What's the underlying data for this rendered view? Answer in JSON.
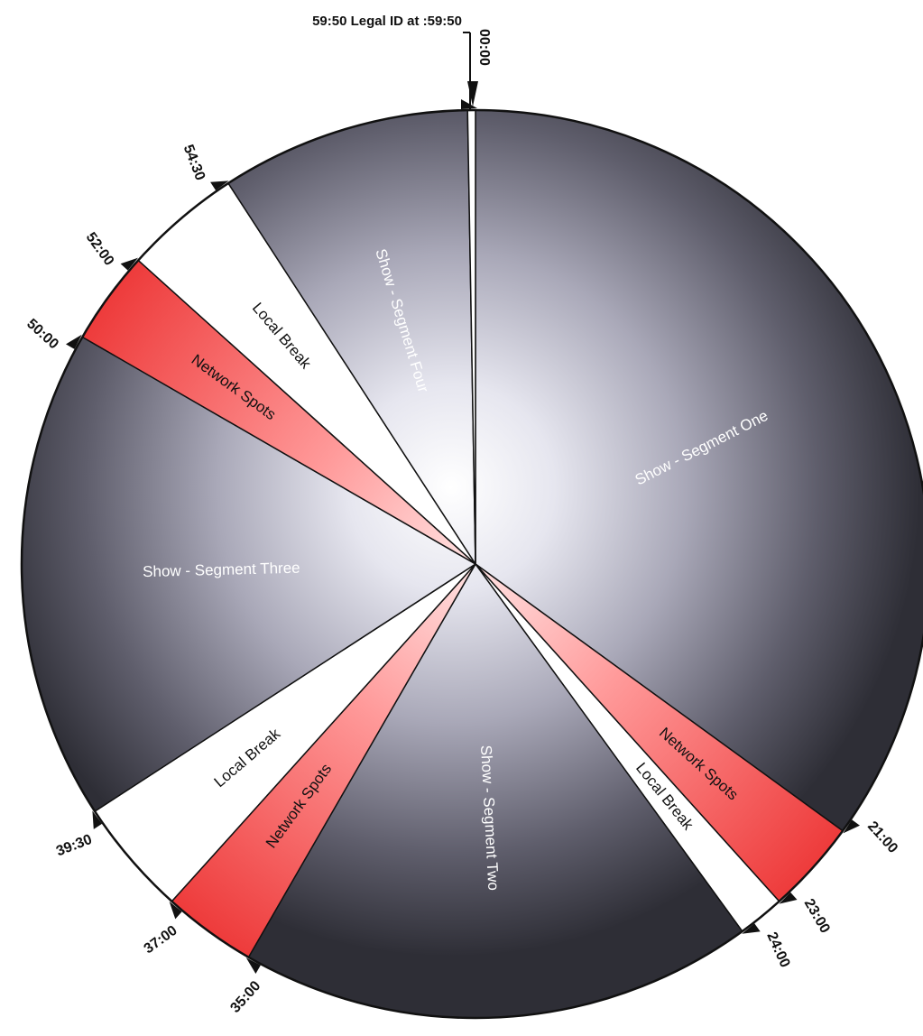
{
  "clock": {
    "legal_id_label": "59:50 Legal ID at :59:50",
    "minutes_total": 60,
    "colors": {
      "show": "#3a3a44",
      "show_highlight": "#ffffff",
      "network_spots": "#f04a4a",
      "network_spots_light": "#ffd0d0",
      "local_break": "#ffffff",
      "legal_id": "#ffffff",
      "outline": "#111111"
    },
    "segments": [
      {
        "name": "Show - Segment One",
        "type": "show",
        "start": "00:00",
        "end": "21:00",
        "label": "Show - Segment One",
        "label_color": "#ffffff"
      },
      {
        "name": "Network Spots",
        "type": "network",
        "start": "21:00",
        "end": "23:00",
        "label": "Network Spots",
        "label_color": "#111111"
      },
      {
        "name": "Local Break",
        "type": "local",
        "start": "23:00",
        "end": "24:00",
        "label": "Local Break",
        "label_color": "#111111"
      },
      {
        "name": "Show - Segment Two",
        "type": "show",
        "start": "24:00",
        "end": "35:00",
        "label": "Show - Segment Two",
        "label_color": "#ffffff"
      },
      {
        "name": "Network Spots",
        "type": "network",
        "start": "35:00",
        "end": "37:00",
        "label": "Network Spots",
        "label_color": "#111111"
      },
      {
        "name": "Local Break",
        "type": "local",
        "start": "37:00",
        "end": "39:30",
        "label": "Local Break",
        "label_color": "#111111"
      },
      {
        "name": "Show - Segment Three",
        "type": "show",
        "start": "39:30",
        "end": "50:00",
        "label": "Show - Segment Three",
        "label_color": "#ffffff"
      },
      {
        "name": "Network Spots",
        "type": "network",
        "start": "50:00",
        "end": "52:00",
        "label": "Network Spots",
        "label_color": "#111111"
      },
      {
        "name": "Local Break",
        "type": "local",
        "start": "52:00",
        "end": "54:30",
        "label": "Local Break",
        "label_color": "#111111"
      },
      {
        "name": "Show - Segment Four",
        "type": "show",
        "start": "54:30",
        "end": "59:50",
        "label": "Show - Segment Four",
        "label_color": "#ffffff"
      },
      {
        "name": "Legal ID",
        "type": "legal",
        "start": "59:50",
        "end": "00:00",
        "label": "",
        "label_color": "#111111"
      }
    ],
    "markers": [
      "00:00",
      "21:00",
      "23:00",
      "24:00",
      "35:00",
      "37:00",
      "39:30",
      "50:00",
      "52:00",
      "54:30"
    ]
  }
}
